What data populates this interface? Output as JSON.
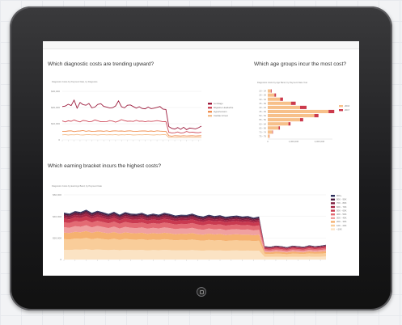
{
  "questions": {
    "q1": "Which diagnostic costs are trending upward?",
    "q2": "Which age groups incur the most cost?",
    "q3": "Which earning bracket incurs the highest costs?"
  },
  "subtitles": {
    "c1": "Diagnostic Costs by Payment Date, by Diagnosis",
    "c2": "Diagnostic Costs by Age Band, by Payment Date Year",
    "c3": "Diagnostic Costs by Earnings Band, by Payment Date"
  },
  "chart_data": [
    {
      "type": "line",
      "title": "Diagnostic Costs by Payment Date, by Diagnosis",
      "ylim": [
        0,
        30000
      ],
      "yticks": [
        "$30,000",
        "$20,000",
        "$10,000",
        "0"
      ],
      "grid": true,
      "legend_position": "right",
      "x_count": 48,
      "series": [
        {
          "name": "Lumbago",
          "color": "#9c1b3c",
          "values": [
            20600,
            20900,
            22000,
            21200,
            24600,
            19600,
            23100,
            21800,
            21400,
            22500,
            19800,
            20300,
            21900,
            22400,
            20700,
            20300,
            19700,
            19900,
            21000,
            24100,
            20500,
            19800,
            21400,
            21600,
            20600,
            19600,
            20500,
            19400,
            19200,
            20300,
            19300,
            19600,
            20100,
            20600,
            19000,
            18800,
            8200,
            7100,
            6700,
            7600,
            6500,
            7800,
            6300,
            7300,
            7100,
            6800,
            7500,
            8500
          ]
        },
        {
          "name": "Migraine Headache",
          "color": "#cf4a5a",
          "values": [
            11700,
            11100,
            11800,
            11500,
            12300,
            11600,
            11100,
            12000,
            11800,
            11200,
            11400,
            12300,
            11800,
            11200,
            11200,
            11300,
            11900,
            11600,
            11000,
            11600,
            12500,
            11900,
            11500,
            11600,
            11400,
            12100,
            11500,
            11600,
            11200,
            11600,
            11400,
            11600,
            11900,
            11600,
            11200,
            11300,
            4700,
            4300,
            4400,
            4900,
            4200,
            4400,
            5200,
            4600,
            4800,
            4500,
            4400,
            4700
          ]
        },
        {
          "name": "Hypertension",
          "color": "#f08e50",
          "values": [
            5300,
            5200,
            5500,
            5600,
            5100,
            5400,
            5500,
            5800,
            5300,
            5600,
            5200,
            5300,
            5500,
            5500,
            5300,
            5600,
            5200,
            5500,
            5600,
            5400,
            5500,
            5300,
            5500,
            5600,
            5300,
            5200,
            5400,
            5500,
            5500,
            5300,
            5500,
            5200,
            5600,
            5400,
            5300,
            5300,
            2600,
            2300,
            2600,
            2500,
            2400,
            2600,
            2400,
            2500,
            2600,
            2400,
            2500,
            2600
          ]
        },
        {
          "name": "Cardiac Arrest",
          "color": "#f4bf8e",
          "values": [
            3100,
            3300,
            3000,
            3200,
            3100,
            3400,
            3100,
            3000,
            3200,
            3300,
            3100,
            3200,
            3000,
            3200,
            3300,
            3100,
            3200,
            3100,
            3300,
            3000,
            3200,
            3100,
            3300,
            3200,
            3000,
            3100,
            3200,
            3100,
            3300,
            3200,
            3100,
            3000,
            3200,
            3100,
            3300,
            3200,
            1500,
            1600,
            1400,
            1500,
            1600,
            1500,
            1400,
            1600,
            1500,
            1500,
            1600,
            1500
          ]
        }
      ]
    },
    {
      "type": "bar",
      "title": "Diagnostic Costs by Age Band, by Payment Date Year",
      "orientation": "horizontal",
      "categories": [
        "20 - 24",
        "25 - 29",
        "30 - 34",
        "35 - 39",
        "40 - 44",
        "45 - 49",
        "50 - 54",
        "55 - 59",
        "60 - 64",
        "65 - 69",
        "70 - 74",
        "75 - 79"
      ],
      "xticks": [
        "0",
        "1,000,000",
        "2,000,000"
      ],
      "xlim": [
        0,
        2500000
      ],
      "legend_position": "right",
      "series": [
        {
          "name": "2016",
          "color": "#f7c08a",
          "values": [
            120000,
            260000,
            480000,
            900000,
            1250000,
            2350000,
            1800000,
            1250000,
            800000,
            420000,
            180000,
            60000
          ]
        },
        {
          "name": "2017",
          "color": "#cc3a4c",
          "values": [
            30000,
            60000,
            110000,
            180000,
            250000,
            220000,
            160000,
            120000,
            80000,
            50000,
            20000,
            10000
          ]
        }
      ]
    },
    {
      "type": "area",
      "stacked": true,
      "title": "Diagnostic Costs by Earnings Band, by Payment Date",
      "ylim": [
        0,
        60000
      ],
      "yticks": [
        "$60,000",
        "$40,000",
        "$20,000",
        "0"
      ],
      "grid": true,
      "legend_position": "right",
      "x_count": 48,
      "series": [
        {
          "name": "<10K",
          "color": "#fbe3c4",
          "values": [
            9000,
            8800,
            9200,
            9100,
            9500,
            8900,
            9300,
            9000,
            8700,
            9100,
            8600,
            9000,
            8800,
            8700,
            8900,
            8500,
            8800,
            8600,
            8900,
            8700,
            8400,
            8600,
            8500,
            8800,
            8400,
            8200,
            8600,
            8300,
            8500,
            8100,
            8300,
            8400,
            8200,
            8300,
            8000,
            8200,
            2500,
            2400,
            2600,
            2500,
            2300,
            2600,
            2500,
            2400,
            2700,
            2500,
            2600,
            2800
          ]
        },
        {
          "name": "10K - 20K",
          "color": "#f9cd9a",
          "values": [
            10000,
            9800,
            10300,
            10100,
            10600,
            9900,
            10400,
            10000,
            9700,
            10200,
            9600,
            10100,
            9800,
            9700,
            9900,
            9500,
            9800,
            9600,
            9900,
            9700,
            9400,
            9600,
            9500,
            9800,
            9400,
            9200,
            9600,
            9300,
            9500,
            9100,
            9300,
            9400,
            9200,
            9300,
            9000,
            9200,
            2800,
            2700,
            2900,
            2800,
            2600,
            2900,
            2800,
            2700,
            3000,
            2800,
            2900,
            3100
          ]
        },
        {
          "name": "20K - 30K",
          "color": "#f5b170",
          "values": [
            6000,
            5900,
            6200,
            6100,
            6400,
            6000,
            6300,
            6100,
            5900,
            6200,
            5800,
            6100,
            5900,
            5900,
            6000,
            5800,
            5900,
            5800,
            6000,
            5900,
            5700,
            5800,
            5800,
            5900,
            5700,
            5600,
            5800,
            5600,
            5700,
            5500,
            5600,
            5700,
            5600,
            5600,
            5500,
            5600,
            1700,
            1600,
            1800,
            1700,
            1600,
            1800,
            1700,
            1600,
            1800,
            1700,
            1800,
            1900
          ]
        },
        {
          "name": "30K - 40K",
          "color": "#f0a0a0",
          "values": [
            5000,
            4900,
            5200,
            5100,
            5300,
            5000,
            5200,
            5100,
            4900,
            5100,
            4800,
            5100,
            4900,
            4900,
            5000,
            4800,
            4900,
            4800,
            5000,
            4900,
            4700,
            4800,
            4800,
            4900,
            4700,
            4600,
            4800,
            4700,
            4700,
            4600,
            4700,
            4700,
            4600,
            4700,
            4500,
            4600,
            1400,
            1400,
            1500,
            1400,
            1300,
            1500,
            1400,
            1400,
            1500,
            1400,
            1500,
            1600
          ]
        },
        {
          "name": "40K - 50K",
          "color": "#e36a73",
          "values": [
            4500,
            4400,
            4700,
            4600,
            4800,
            4500,
            4700,
            4600,
            4400,
            4600,
            4300,
            4600,
            4400,
            4400,
            4500,
            4300,
            4400,
            4300,
            4500,
            4400,
            4200,
            4300,
            4300,
            4400,
            4200,
            4100,
            4300,
            4200,
            4200,
            4100,
            4200,
            4200,
            4100,
            4200,
            4000,
            4100,
            1300,
            1200,
            1300,
            1300,
            1200,
            1300,
            1300,
            1200,
            1400,
            1300,
            1300,
            1400
          ]
        },
        {
          "name": "50K - 60K",
          "color": "#c93a50",
          "values": [
            3500,
            3400,
            3600,
            3500,
            3700,
            3500,
            3600,
            3500,
            3400,
            3500,
            3300,
            3500,
            3400,
            3400,
            3500,
            3300,
            3400,
            3300,
            3500,
            3400,
            3300,
            3300,
            3300,
            3400,
            3300,
            3200,
            3300,
            3200,
            3300,
            3200,
            3200,
            3300,
            3200,
            3200,
            3100,
            3200,
            1000,
            950,
            1000,
            1000,
            900,
            1000,
            1000,
            950,
            1050,
            1000,
            1000,
            1100
          ]
        },
        {
          "name": "60K - 70K",
          "color": "#a52544",
          "values": [
            2000,
            1950,
            2100,
            2050,
            2150,
            2000,
            2100,
            2050,
            1950,
            2050,
            1900,
            2050,
            1950,
            1950,
            2000,
            1900,
            1950,
            1900,
            2000,
            1950,
            1850,
            1900,
            1900,
            1950,
            1850,
            1800,
            1900,
            1850,
            1850,
            1800,
            1850,
            1850,
            1800,
            1850,
            1750,
            1800,
            600,
            580,
            620,
            600,
            560,
            620,
            600,
            580,
            640,
            600,
            620,
            660
          ]
        },
        {
          "name": "70K - 80K",
          "color": "#7e1b3d",
          "values": [
            1500,
            1450,
            1550,
            1500,
            1600,
            1500,
            1550,
            1500,
            1450,
            1500,
            1400,
            1500,
            1450,
            1450,
            1500,
            1400,
            1450,
            1400,
            1500,
            1450,
            1400,
            1400,
            1400,
            1450,
            1400,
            1350,
            1400,
            1350,
            1400,
            1350,
            1350,
            1400,
            1350,
            1350,
            1300,
            1350,
            450,
            430,
            460,
            450,
            420,
            460,
            450,
            430,
            470,
            450,
            460,
            490
          ]
        },
        {
          "name": "80K - 90K",
          "color": "#4a1a3c",
          "values": [
            1200,
            1150,
            1250,
            1200,
            1300,
            1200,
            1250,
            1200,
            1150,
            1200,
            1100,
            1200,
            1150,
            1150,
            1200,
            1100,
            1150,
            1100,
            1200,
            1150,
            1100,
            1100,
            1100,
            1150,
            1100,
            1050,
            1100,
            1050,
            1100,
            1050,
            1050,
            1100,
            1050,
            1050,
            1000,
            1050,
            350,
            330,
            360,
            350,
            320,
            360,
            350,
            330,
            370,
            350,
            360,
            380
          ]
        },
        {
          "name": "90K+",
          "color": "#2c2f5c",
          "values": [
            800,
            780,
            830,
            810,
            850,
            800,
            830,
            810,
            780,
            810,
            760,
            810,
            780,
            780,
            800,
            760,
            780,
            760,
            800,
            780,
            750,
            760,
            760,
            780,
            750,
            730,
            760,
            740,
            750,
            730,
            740,
            750,
            730,
            740,
            720,
            730,
            240,
            230,
            250,
            240,
            220,
            250,
            240,
            230,
            260,
            240,
            250,
            270
          ]
        }
      ]
    }
  ]
}
